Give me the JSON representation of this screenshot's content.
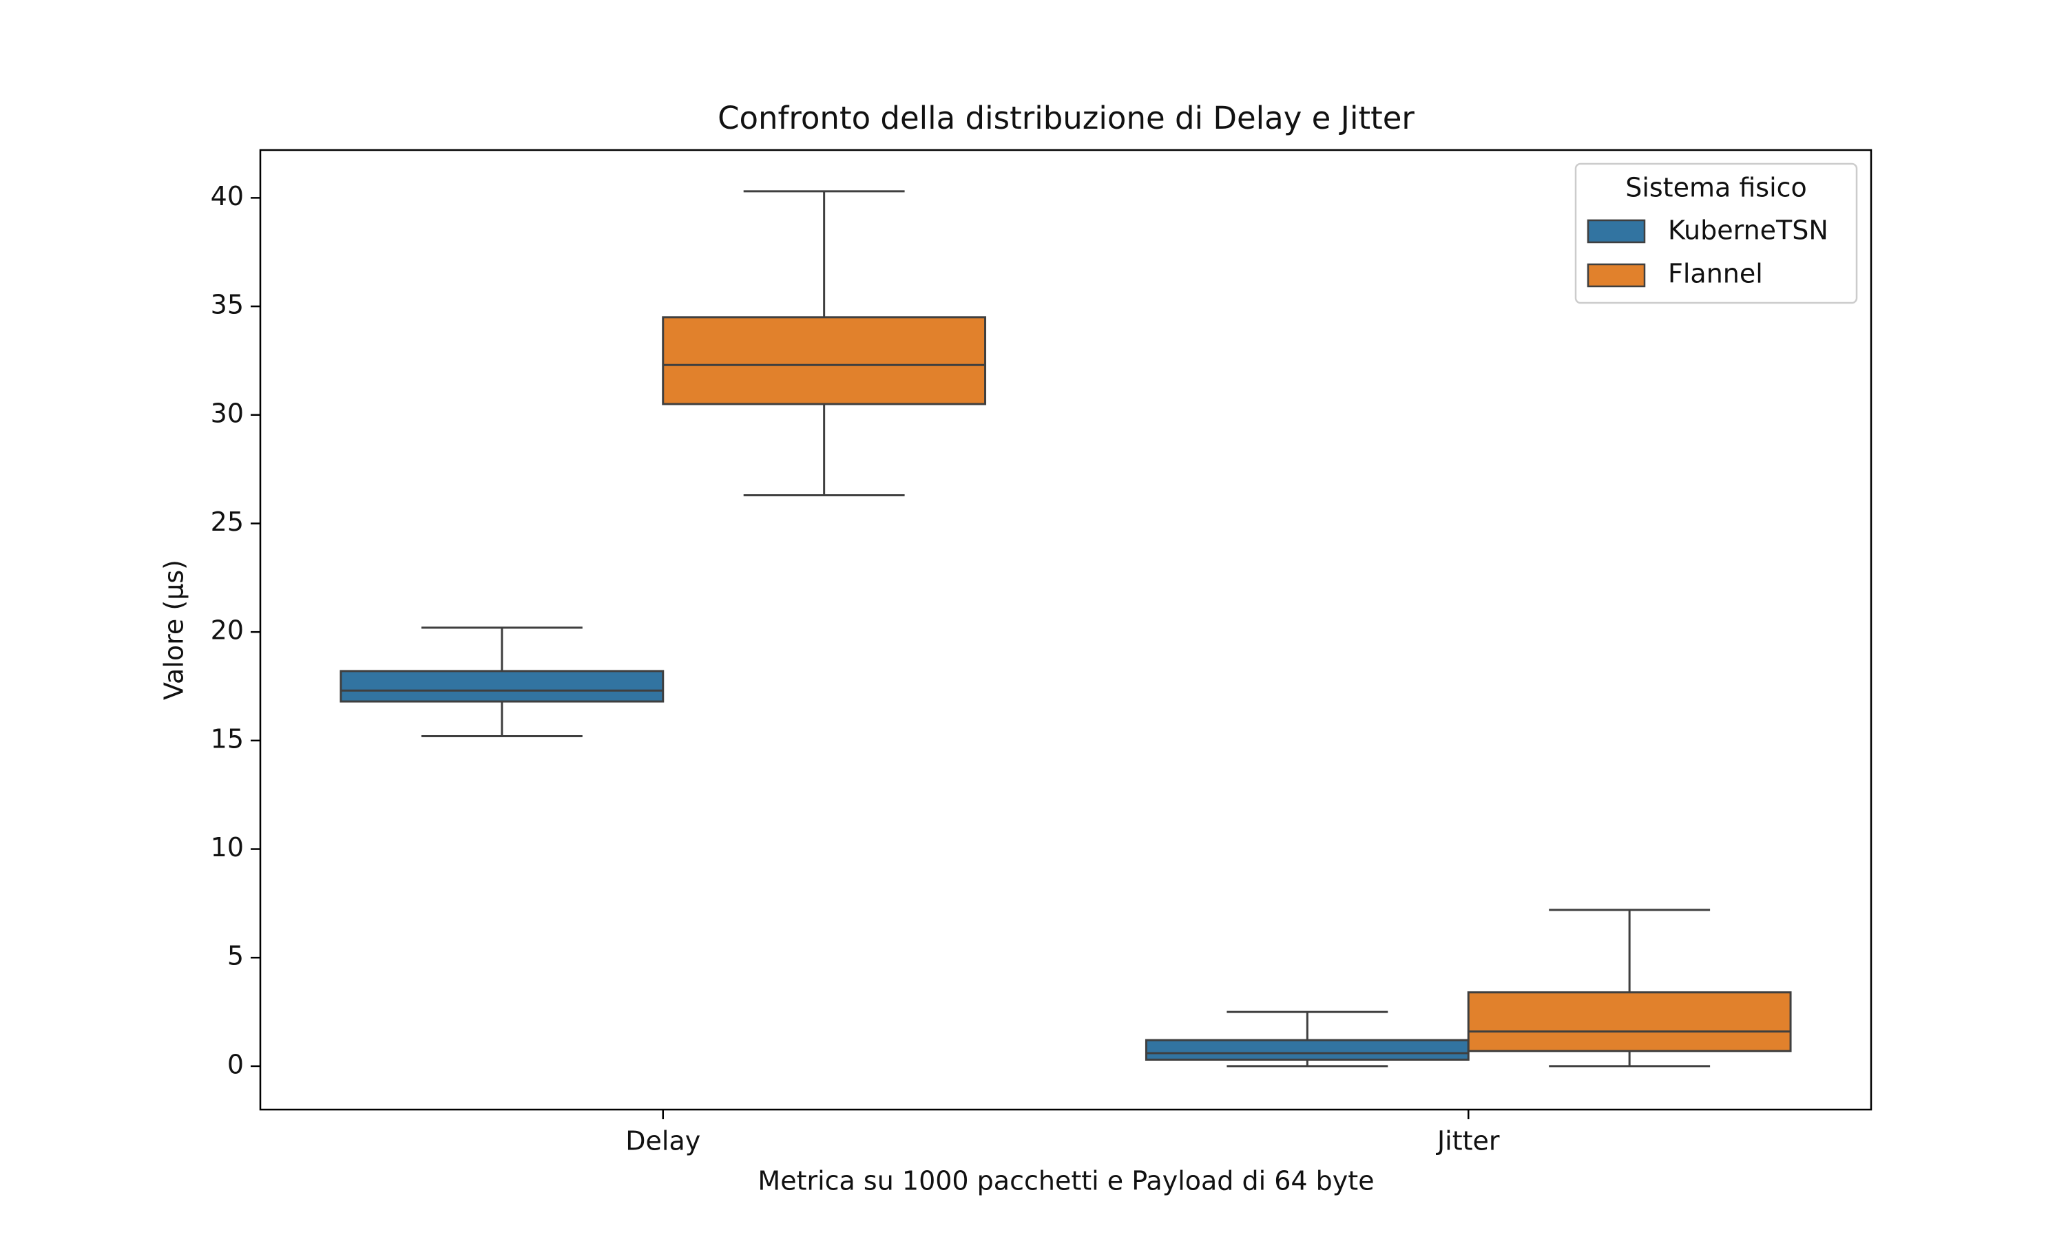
{
  "chart_data": {
    "type": "box",
    "title": "Confronto della distribuzione di Delay e Jitter",
    "xlabel": "Metrica su 1000 pacchetti e Payload di 64 byte",
    "ylabel": "Valore (μs)",
    "categories": [
      "Delay",
      "Jitter"
    ],
    "ylim": [
      -2,
      42.2
    ],
    "yticks": [
      0,
      5,
      10,
      15,
      20,
      25,
      30,
      35,
      40
    ],
    "grid": false,
    "legend": {
      "title": "Sistema fisico",
      "placement": "top-right"
    },
    "series": [
      {
        "name": "KuberneTSN",
        "color": "#3274a1",
        "boxes": [
          {
            "category": "Delay",
            "whislo": 15.2,
            "q1": 16.8,
            "median": 17.3,
            "q3": 18.2,
            "whishi": 20.2
          },
          {
            "category": "Jitter",
            "whislo": 0.0,
            "q1": 0.3,
            "median": 0.6,
            "q3": 1.2,
            "whishi": 2.5
          }
        ]
      },
      {
        "name": "Flannel",
        "color": "#e1812c",
        "boxes": [
          {
            "category": "Delay",
            "whislo": 26.3,
            "q1": 30.5,
            "median": 32.3,
            "q3": 34.5,
            "whishi": 40.3
          },
          {
            "category": "Jitter",
            "whislo": 0.0,
            "q1": 0.7,
            "median": 1.6,
            "q3": 3.4,
            "whishi": 7.2
          }
        ]
      }
    ]
  }
}
